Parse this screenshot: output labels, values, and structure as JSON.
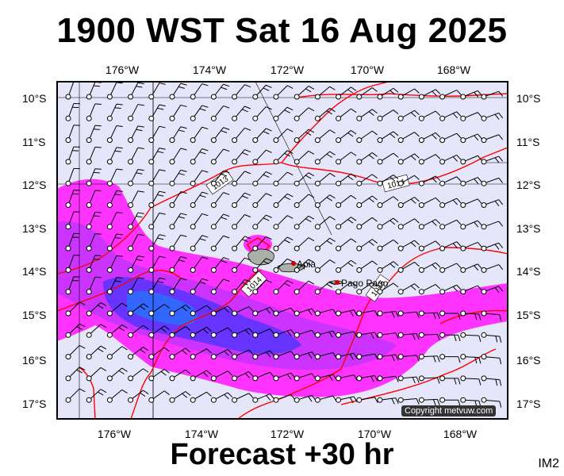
{
  "title": "1900 WST Sat 16 Aug 2025",
  "footer": "Forecast +30 hr",
  "code": "IM2",
  "copyright": "Copyright metvuw.com",
  "axes": {
    "lon_labels": [
      "176°W",
      "174°W",
      "172°W",
      "170°W",
      "168°W"
    ],
    "lat_labels": [
      "10°S",
      "11°S",
      "12°S",
      "13°S",
      "14°S",
      "15°S",
      "16°S",
      "17°S"
    ]
  },
  "places": [
    "Apia",
    "Pago Pago"
  ],
  "isobars": [
    "1013",
    "1014",
    "1014",
    "1015"
  ],
  "colors": {
    "background": "#e6e6fa",
    "rain_light": "#ff33ff",
    "rain_mid": "#cc33ff",
    "rain_heavy": "#6633ff",
    "rain_peak": "#3366ff",
    "isobar": "#ff0000",
    "land": "#aab0a8"
  }
}
